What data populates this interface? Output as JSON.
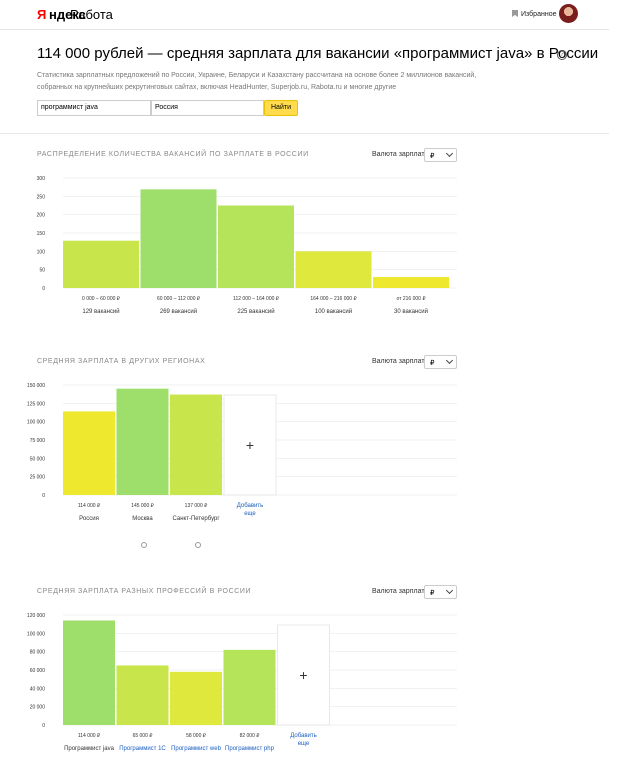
{
  "header": {
    "logo_y": "Я",
    "logo_rest": "ндекс",
    "logo_work": "Работа",
    "favorites": "Избранное"
  },
  "page_title": "114 000 рублей — средняя зарплата для вакансии «программист java» в России",
  "help": "?",
  "subtitle": "Статистика зарплатных предложений по России, Украине, Беларуси и Казахстану рассчитана на основе более 2 миллионов вакансий, собранных на крупнейших рекрутинговых сайтах, включая HeadHunter, Superjob.ru, Rabota.ru и многие другие",
  "search": {
    "query": "программист java",
    "region": "Россия",
    "button": "Найти"
  },
  "currency_label": "Валюта зарплат",
  "currency_value": "₽",
  "colors": {
    "bright_green": "#9ede6a",
    "lime": "#c8e64c",
    "yellow": "#eee92f"
  },
  "chart_data": [
    {
      "type": "bar",
      "title": "Распределение количества вакансий по зарплате в России",
      "categories": [
        "0 000 – 60 000 ₽",
        "60 000 – 112 000 ₽",
        "112 000 – 164 000 ₽",
        "164 000 – 216 000 ₽",
        "от 216 000 ₽"
      ],
      "values": [
        129,
        269,
        225,
        100,
        30
      ],
      "value_labels": [
        "129 вакансий",
        "269 вакансий",
        "225 вакансий",
        "100 вакансий",
        "30 вакансий"
      ],
      "yticks": [
        "300",
        "250",
        "200",
        "150",
        "100",
        "50",
        "0"
      ],
      "ylim": [
        0,
        300
      ],
      "colors": [
        "#c8e64c",
        "#9ede6a",
        "#b5e35a",
        "#dfe83d",
        "#eee92f"
      ]
    },
    {
      "type": "bar",
      "title": "Средняя зарплата в других регионах",
      "categories": [
        "Россия",
        "Москва",
        "Санкт-Петербург"
      ],
      "values": [
        114000,
        145000,
        137000
      ],
      "value_labels": [
        "114 000 ₽",
        "145 000 ₽",
        "137 000 ₽"
      ],
      "yticks": [
        "150 000",
        "125 000",
        "100 000",
        "75 000",
        "50 000",
        "25 000",
        "0"
      ],
      "ylim": [
        0,
        150000
      ],
      "colors": [
        "#eee92f",
        "#9ede6a",
        "#c8e64c"
      ],
      "add_label": [
        "Добавить",
        "еще"
      ]
    },
    {
      "type": "bar",
      "title": "Средняя зарплата разных профессий в России",
      "categories": [
        "Программист java",
        "Программист 1С",
        "Программист web",
        "Программист php"
      ],
      "values": [
        114000,
        65000,
        58000,
        82000
      ],
      "value_labels": [
        "114 000 ₽",
        "65 000 ₽",
        "58 000 ₽",
        "82 000 ₽"
      ],
      "yticks": [
        "120 000",
        "100 000",
        "80 000",
        "60 000",
        "40 000",
        "20 000",
        "0"
      ],
      "ylim": [
        0,
        120000
      ],
      "colors": [
        "#9ede6a",
        "#c8e64c",
        "#dfe83d",
        "#b5e35a"
      ],
      "add_label": [
        "Добавить",
        "еще"
      ]
    }
  ]
}
